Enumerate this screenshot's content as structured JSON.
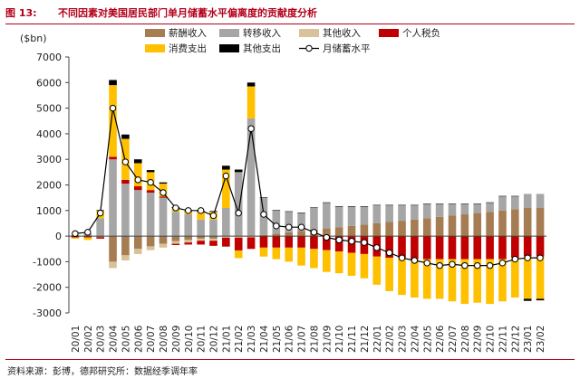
{
  "figure_label": "图 13:",
  "figure_title": "不同因素对美国居民部门单月储蓄水平偏离度的贡献度分析",
  "source": "资料来源：彭博，德邦研究所：数据经季调年率",
  "colors": {
    "title_red": "#b3001b",
    "wage_income": "#a67c52",
    "transfer_income": "#a6a6a6",
    "other_income": "#d9c29b",
    "personal_tax": "#c00000",
    "consumption": "#ffc000",
    "other_expenditure": "#000000",
    "savings_line": "#000000"
  },
  "chart_data": {
    "type": "bar",
    "stacked": true,
    "ylabel": "($bn)",
    "ylim": [
      -3000,
      7000
    ],
    "yticks": [
      -3000,
      -2000,
      -1000,
      0,
      1000,
      2000,
      3000,
      4000,
      5000,
      6000,
      7000
    ],
    "grid": false,
    "legend_position": "top",
    "categories": [
      "20/01",
      "20/02",
      "20/03",
      "20/04",
      "20/05",
      "20/06",
      "20/07",
      "20/08",
      "20/09",
      "20/10",
      "20/11",
      "20/12",
      "21/01",
      "21/02",
      "21/03",
      "21/04",
      "21/05",
      "21/06",
      "21/07",
      "21/08",
      "21/09",
      "21/10",
      "21/11",
      "21/12",
      "22/01",
      "22/02",
      "22/03",
      "22/04",
      "22/05",
      "22/06",
      "22/07",
      "22/08",
      "22/09",
      "22/10",
      "22/11",
      "22/12",
      "23/01",
      "23/02"
    ],
    "tick_labels_shown": [
      "20/01",
      "20/02",
      "20/03",
      "20/04",
      "20/05",
      "20/06",
      "20/07",
      "20/08",
      "20/09",
      "20/10",
      "20/11",
      "20/12",
      "21/01",
      "21/02",
      "21/03",
      "21/04",
      "21/05",
      "21/06",
      "21/07",
      "21/08",
      "21/09",
      "21/10",
      "21/11",
      "21/12",
      "22/01",
      "22/02",
      "22/03",
      "22/04",
      "22/05",
      "22/06",
      "22/07",
      "22/08",
      "22/09",
      "22/10",
      "22/11",
      "22/12",
      "23/01",
      "23/02"
    ],
    "series": [
      {
        "name": "薪酬收入",
        "kind": "bar",
        "values": [
          0,
          0,
          -50,
          -1000,
          -750,
          -500,
          -400,
          -300,
          -200,
          -150,
          -100,
          -100,
          0,
          0,
          0,
          50,
          100,
          150,
          200,
          250,
          300,
          350,
          400,
          450,
          500,
          550,
          600,
          650,
          700,
          750,
          800,
          850,
          900,
          950,
          1000,
          1050,
          1100,
          1100
        ]
      },
      {
        "name": "转移收入",
        "kind": "bar",
        "values": [
          50,
          100,
          700,
          3000,
          2050,
          1800,
          1700,
          1500,
          950,
          850,
          650,
          650,
          1100,
          2500,
          4600,
          1450,
          900,
          800,
          700,
          850,
          1000,
          800,
          750,
          700,
          700,
          650,
          600,
          550,
          550,
          500,
          450,
          400,
          350,
          350,
          550,
          500,
          550,
          550
        ]
      },
      {
        "name": "其他收入",
        "kind": "bar",
        "values": [
          0,
          0,
          0,
          -250,
          -200,
          -200,
          -150,
          -150,
          -100,
          -100,
          -80,
          -80,
          -60,
          -60,
          -50,
          0,
          0,
          0,
          0,
          0,
          0,
          0,
          0,
          0,
          0,
          0,
          0,
          0,
          0,
          0,
          0,
          0,
          0,
          0,
          0,
          0,
          0,
          0
        ]
      },
      {
        "name": "个人税负",
        "kind": "bar",
        "values": [
          -50,
          -50,
          -50,
          100,
          150,
          150,
          100,
          50,
          -50,
          -80,
          -150,
          -200,
          -350,
          -500,
          -450,
          -450,
          -450,
          -450,
          -450,
          -500,
          -550,
          -600,
          -650,
          -700,
          -800,
          -850,
          -850,
          -900,
          -900,
          -900,
          -900,
          -900,
          -900,
          -900,
          -900,
          -850,
          -800,
          -800
        ]
      },
      {
        "name": "消费支出",
        "kind": "bar",
        "values": [
          -50,
          -100,
          300,
          2800,
          1600,
          900,
          700,
          500,
          150,
          100,
          300,
          300,
          1500,
          -300,
          1250,
          -350,
          -450,
          -550,
          -700,
          -750,
          -850,
          -850,
          -900,
          -950,
          -1100,
          -1300,
          -1450,
          -1500,
          -1550,
          -1550,
          -1650,
          -1750,
          -1700,
          -1750,
          -1650,
          -1550,
          -1650,
          -1650
        ]
      },
      {
        "name": "其他支出",
        "kind": "bar",
        "values": [
          0,
          0,
          20,
          200,
          170,
          150,
          80,
          50,
          40,
          30,
          30,
          30,
          150,
          100,
          150,
          20,
          20,
          20,
          20,
          20,
          20,
          20,
          20,
          20,
          20,
          20,
          20,
          20,
          20,
          20,
          20,
          20,
          20,
          20,
          20,
          20,
          -80,
          -60
        ]
      },
      {
        "name": "月储蓄水平",
        "kind": "line",
        "values": [
          100,
          150,
          900,
          5000,
          2900,
          2200,
          2100,
          1700,
          1100,
          1000,
          1000,
          800,
          2350,
          900,
          4200,
          850,
          400,
          350,
          350,
          150,
          -50,
          -150,
          -200,
          -250,
          -450,
          -650,
          -850,
          -950,
          -1050,
          -1150,
          -1100,
          -1150,
          -1150,
          -1150,
          -1050,
          -900,
          -850,
          -850
        ]
      }
    ]
  }
}
